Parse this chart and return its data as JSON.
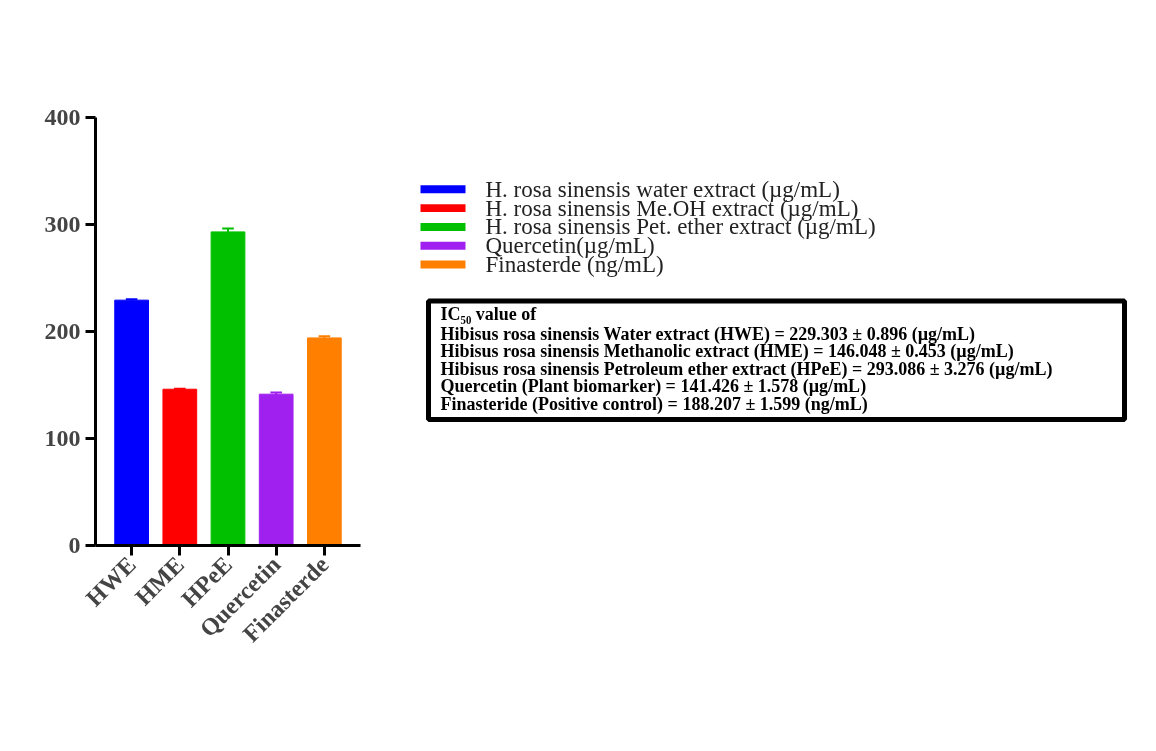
{
  "chart_data": {
    "type": "bar",
    "categories": [
      "HWE",
      "HME",
      "HPeE",
      "Quercetin",
      "Finasterde"
    ],
    "series": [
      {
        "name": "H. rosa sinensis water extract (µg/mL)",
        "color": "#0000ff",
        "values": [
          229.303,
          null,
          null,
          null,
          null
        ],
        "errors": [
          0.896,
          null,
          null,
          null,
          null
        ]
      },
      {
        "name": "H. rosa sinensis Me.OH extract (µg/mL)",
        "color": "#ff0000",
        "values": [
          null,
          146.048,
          null,
          null,
          null
        ],
        "errors": [
          null,
          0.453,
          null,
          null,
          null
        ]
      },
      {
        "name": "H. rosa sinensis Pet. ether extract (µg/mL)",
        "color": "#00c000",
        "values": [
          null,
          null,
          293.086,
          null,
          null
        ],
        "errors": [
          null,
          null,
          3.276,
          null,
          null
        ]
      },
      {
        "name": "Quercetin(µg/mL)",
        "color": "#a020f0",
        "values": [
          null,
          null,
          null,
          141.426,
          null
        ],
        "errors": [
          null,
          null,
          null,
          1.578,
          null
        ]
      },
      {
        "name": "Finasterde (ng/mL)",
        "color": "#ff8000",
        "values": [
          null,
          null,
          null,
          null,
          194
        ],
        "errors": [
          null,
          null,
          null,
          null,
          1.599
        ]
      }
    ],
    "ylim": [
      0,
      400
    ],
    "yticks": [
      0,
      100,
      200,
      300,
      400
    ],
    "grid": false,
    "legend": "right",
    "annotations": [
      "IC₅₀ value of",
      "Hibisus rosa sinensis Water extract (HWE) = 229.303 ± 0.896 (µg/mL)",
      "Hibisus rosa sinensis Methanolic extract (HME) = 146.048 ± 0.453 (µg/mL)",
      "Hibisus rosa sinensis Petroleum ether extract (HPeE) = 293.086 ± 3.276 (µg/mL)",
      "Quercetin (Plant biomarker) = 141.426 ± 1.578 (µg/mL)",
      "Finasteride (Positive control) = 188.207 ± 1.599 (ng/mL)"
    ]
  }
}
